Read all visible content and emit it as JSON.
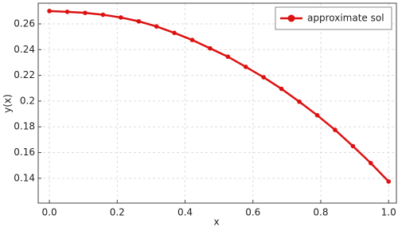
{
  "chart_data": {
    "type": "line",
    "xlabel": "x",
    "ylabel": "y(x)",
    "x": [
      0,
      0.0526,
      0.1053,
      0.1579,
      0.2105,
      0.2632,
      0.3158,
      0.3684,
      0.4211,
      0.4737,
      0.5263,
      0.5789,
      0.6316,
      0.6842,
      0.7368,
      0.7895,
      0.8421,
      0.8947,
      0.9474,
      1
    ],
    "series": [
      {
        "name": "approximate sol",
        "color": "#dd1111",
        "values": [
          0.27,
          0.2694,
          0.2686,
          0.2671,
          0.265,
          0.262,
          0.258,
          0.253,
          0.2475,
          0.241,
          0.2345,
          0.2266,
          0.2185,
          0.2095,
          0.1995,
          0.189,
          0.1776,
          0.165,
          0.1518,
          0.1375
        ]
      }
    ],
    "xlim": [
      -0.033,
      1.023
    ],
    "ylim": [
      0.1207,
      0.2761
    ],
    "xticks": [
      {
        "value": 0,
        "label": "0.0"
      },
      0.2,
      0.4,
      0.6,
      0.8,
      {
        "value": 1,
        "label": "1.0"
      }
    ],
    "yticks": [
      0.14,
      0.16,
      0.18,
      0.2,
      0.22,
      0.24,
      0.26
    ],
    "grid": true,
    "legend": "upper right"
  }
}
